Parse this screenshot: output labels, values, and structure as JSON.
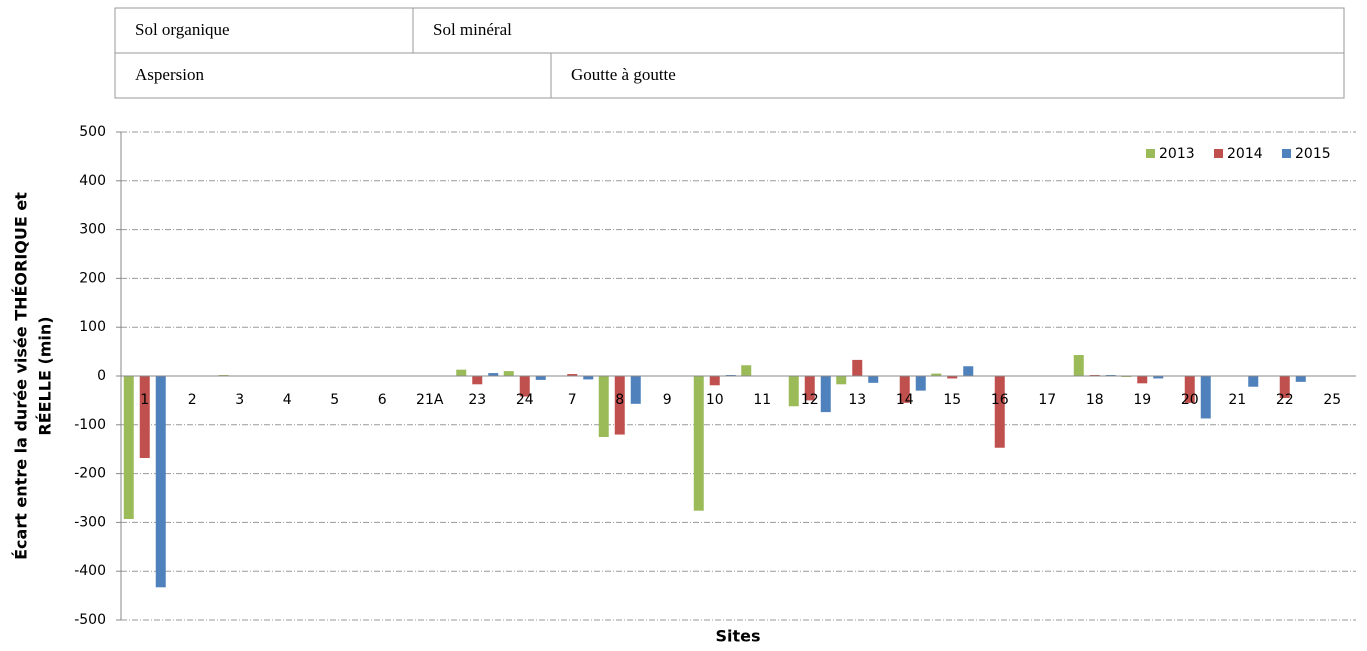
{
  "header": {
    "rows": [
      [
        "Sol organique",
        "Sol minéral"
      ],
      [
        "Aspersion",
        "Goutte à goutte"
      ]
    ]
  },
  "chart_data": {
    "type": "bar",
    "y_label": [
      "Écart entre la durée visée THÉORIQUE et",
      "RÉELLE (min)"
    ],
    "x_label": "Sites",
    "categories": [
      "1",
      "2",
      "3",
      "4",
      "5",
      "6",
      "21A",
      "23",
      "24",
      "7",
      "8",
      "9",
      "10",
      "11",
      "12",
      "13",
      "14",
      "15",
      "16",
      "17",
      "18",
      "19",
      "20",
      "21",
      "22",
      "25"
    ],
    "series": [
      {
        "name": "2013",
        "color": "#9bbb59",
        "values": [
          -293,
          null,
          2,
          null,
          null,
          null,
          null,
          13,
          10,
          null,
          -125,
          null,
          -276,
          22,
          -62,
          -17,
          null,
          5,
          null,
          null,
          43,
          -2,
          null,
          null,
          null,
          null
        ]
      },
      {
        "name": "2014",
        "color": "#c0504d",
        "values": [
          -168,
          null,
          null,
          null,
          null,
          null,
          null,
          -17,
          -42,
          4,
          -120,
          null,
          -19,
          null,
          -50,
          33,
          -55,
          -5,
          -147,
          null,
          2,
          -15,
          -55,
          null,
          -45,
          null
        ]
      },
      {
        "name": "2015",
        "color": "#4f81bd",
        "values": [
          -433,
          null,
          null,
          null,
          null,
          null,
          null,
          6,
          -8,
          -7,
          -57,
          null,
          2,
          null,
          -74,
          -14,
          -30,
          20,
          null,
          null,
          2,
          -5,
          -87,
          -22,
          -12,
          null
        ]
      }
    ],
    "ylim": [
      -500,
      500
    ],
    "yticks": [
      -500,
      -400,
      -300,
      -200,
      -100,
      0,
      100,
      200,
      300,
      400,
      500
    ],
    "grid": true,
    "legend": "top-right"
  }
}
